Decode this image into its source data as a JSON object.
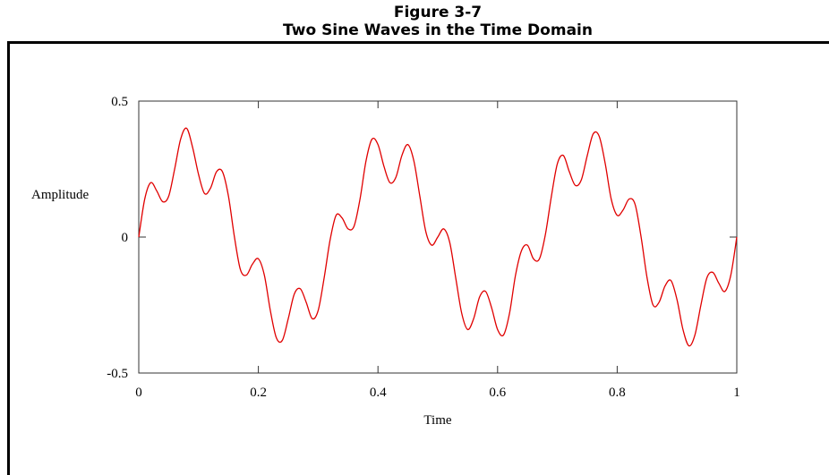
{
  "chart_data": {
    "type": "line",
    "title": "Figure 3-7",
    "subtitle": "Two Sine Waves in the Time Domain",
    "xlabel": "Time",
    "ylabel": "Amplitude",
    "x": [
      0,
      0.01,
      0.02,
      0.03,
      0.04,
      0.05,
      0.06,
      0.07,
      0.08,
      0.09,
      0.1,
      0.11,
      0.12,
      0.13,
      0.14,
      0.15,
      0.16,
      0.17,
      0.18,
      0.19,
      0.2,
      0.21,
      0.22,
      0.23,
      0.24,
      0.25,
      0.26,
      0.27,
      0.28,
      0.29,
      0.3,
      0.31,
      0.32,
      0.33,
      0.34,
      0.35,
      0.36,
      0.37,
      0.38,
      0.39,
      0.4,
      0.41,
      0.42,
      0.43,
      0.44,
      0.45,
      0.46,
      0.47,
      0.48,
      0.49,
      0.5,
      0.51,
      0.52,
      0.53,
      0.54,
      0.55,
      0.56,
      0.57,
      0.58,
      0.59,
      0.6,
      0.61,
      0.62,
      0.63,
      0.64,
      0.65,
      0.66,
      0.67,
      0.68,
      0.69,
      0.7,
      0.71,
      0.72,
      0.73,
      0.74,
      0.75,
      0.76,
      0.77,
      0.78,
      0.79,
      0.8,
      0.81,
      0.82,
      0.83,
      0.84,
      0.85,
      0.86,
      0.87,
      0.88,
      0.89,
      0.9,
      0.91,
      0.92,
      0.93,
      0.94,
      0.95,
      0.96,
      0.97,
      0.98,
      0.99,
      1
    ],
    "series": [
      {
        "color": "#e00000",
        "values": [
          0,
          0.14,
          0.2,
          0.17,
          0.13,
          0.15,
          0.25,
          0.36,
          0.4,
          0.33,
          0.23,
          0.16,
          0.18,
          0.24,
          0.24,
          0.15,
          0,
          -0.12,
          -0.14,
          -0.1,
          -0.08,
          -0.14,
          -0.27,
          -0.37,
          -0.38,
          -0.3,
          -0.21,
          -0.19,
          -0.24,
          -0.3,
          -0.27,
          -0.15,
          -0.01,
          0.08,
          0.07,
          0.03,
          0.04,
          0.14,
          0.28,
          0.36,
          0.34,
          0.26,
          0.2,
          0.22,
          0.3,
          0.34,
          0.28,
          0.15,
          0.02,
          -0.03,
          0,
          0.03,
          -0.02,
          -0.15,
          -0.28,
          -0.34,
          -0.3,
          -0.22,
          -0.2,
          -0.26,
          -0.34,
          -0.36,
          -0.28,
          -0.14,
          -0.05,
          -0.03,
          -0.08,
          -0.08,
          0.01,
          0.15,
          0.27,
          0.3,
          0.24,
          0.19,
          0.21,
          0.3,
          0.38,
          0.37,
          0.27,
          0.14,
          0.08,
          0.1,
          0.14,
          0.12,
          0,
          -0.15,
          -0.25,
          -0.24,
          -0.18,
          -0.16,
          -0.23,
          -0.34,
          -0.4,
          -0.36,
          -0.25,
          -0.15,
          -0.13,
          -0.17,
          -0.2,
          -0.14,
          0
        ]
      }
    ],
    "xlim": [
      0,
      1
    ],
    "xticks": [
      0,
      0.2,
      0.4,
      0.6,
      0.8,
      1
    ],
    "ylim": [
      -0.5,
      0.5
    ],
    "yticks": [
      -0.5,
      0,
      0.5
    ]
  }
}
